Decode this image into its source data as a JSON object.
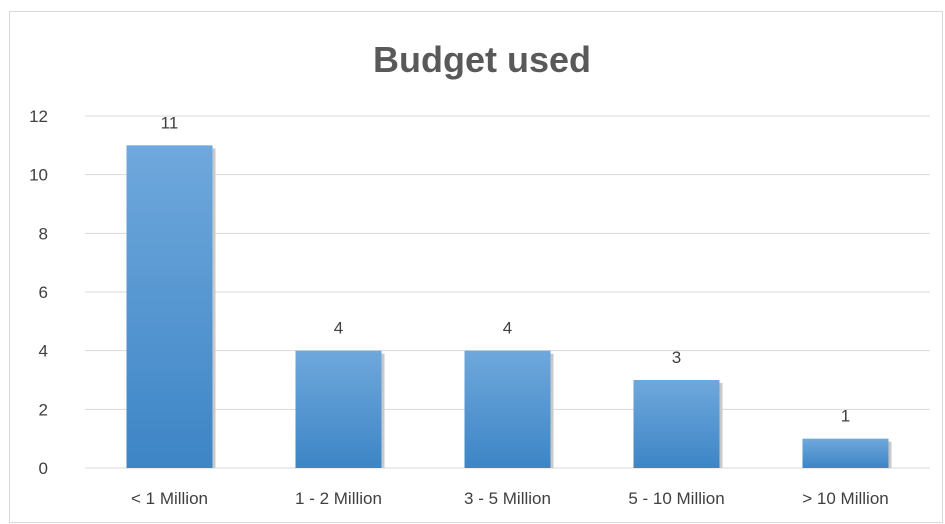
{
  "chart_data": {
    "type": "bar",
    "title": "Budget used",
    "xlabel": "",
    "ylabel": "",
    "categories": [
      "< 1 Million",
      "1 - 2 Million",
      "3 - 5 Million",
      "5 - 10 Million",
      "> 10 Million"
    ],
    "values": [
      11,
      4,
      4,
      3,
      1
    ],
    "data_labels": [
      "11",
      "4",
      "4",
      "3",
      "1"
    ],
    "ylim": [
      0,
      12
    ],
    "yticks": [
      "0",
      "2",
      "4",
      "6",
      "8",
      "10",
      "12"
    ],
    "grid": true,
    "legend": "none",
    "colors": {
      "bar_top": "#6fa8dc",
      "bar_bottom": "#3d85c6",
      "bar_shadow": "#c9c9c9"
    }
  }
}
